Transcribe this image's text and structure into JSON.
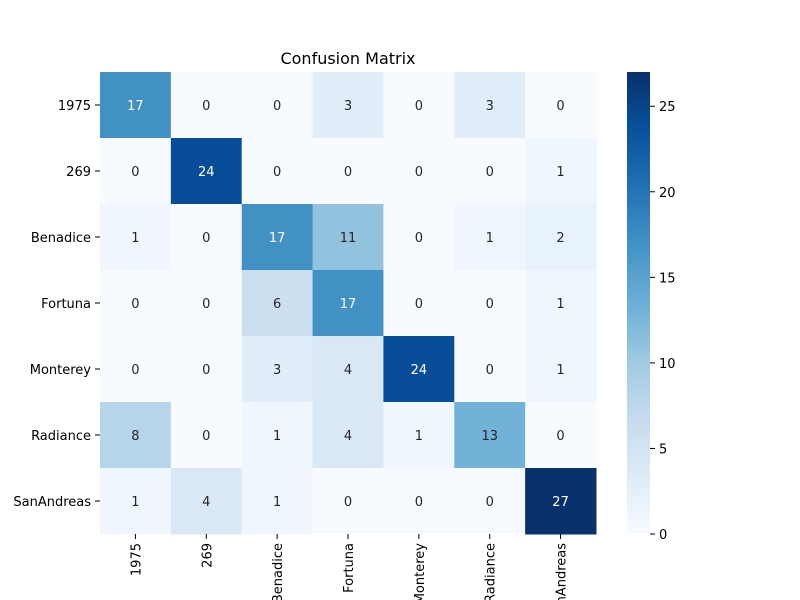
{
  "chart_data": {
    "type": "heatmap",
    "title": "Confusion Matrix",
    "xlabel": "",
    "ylabel": "",
    "row_labels": [
      "1975",
      "269",
      "Benadice",
      "Fortuna",
      "Monterey",
      "Radiance",
      "SanAndreas"
    ],
    "col_labels": [
      "1975",
      "269",
      "Benadice",
      "Fortuna",
      "Monterey",
      "Radiance",
      "SanAndreas"
    ],
    "values": [
      [
        17,
        0,
        0,
        3,
        0,
        3,
        0
      ],
      [
        0,
        24,
        0,
        0,
        0,
        0,
        1
      ],
      [
        1,
        0,
        17,
        11,
        0,
        1,
        2
      ],
      [
        0,
        0,
        6,
        17,
        0,
        0,
        1
      ],
      [
        0,
        0,
        3,
        4,
        24,
        0,
        1
      ],
      [
        8,
        0,
        1,
        4,
        1,
        13,
        0
      ],
      [
        1,
        4,
        1,
        0,
        0,
        0,
        27
      ]
    ],
    "colorbar": {
      "min": 0,
      "max": 27,
      "ticks": [
        0,
        5,
        10,
        15,
        20,
        25
      ]
    },
    "colormap": "Blues",
    "grid": false
  }
}
